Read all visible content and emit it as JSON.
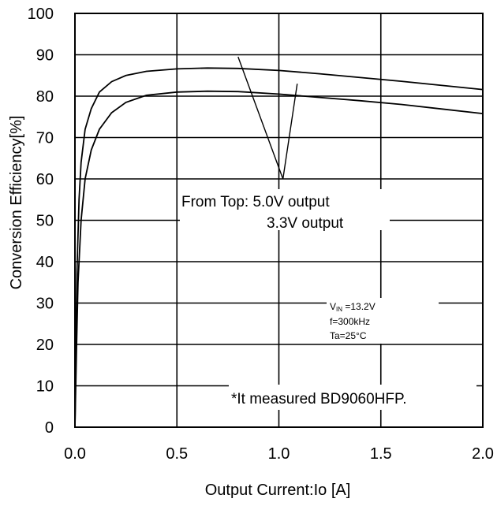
{
  "chart_data": {
    "type": "line",
    "title": "",
    "xlabel": "Output Current:Io [A]",
    "ylabel": "Conversion Efficiency[%]",
    "xlim": [
      0,
      2.0
    ],
    "ylim": [
      0,
      100
    ],
    "x_ticks": [
      "0.0",
      "0.5",
      "1.0",
      "1.5",
      "2.0"
    ],
    "y_ticks": [
      "0",
      "10",
      "20",
      "30",
      "40",
      "50",
      "60",
      "70",
      "80",
      "90",
      "100"
    ],
    "grid": true,
    "series": [
      {
        "points": [
          [
            0.0,
            0
          ],
          [
            0.005,
            20
          ],
          [
            0.01,
            38
          ],
          [
            0.02,
            55
          ],
          [
            0.03,
            64
          ],
          [
            0.05,
            72
          ],
          [
            0.08,
            77
          ],
          [
            0.12,
            81
          ],
          [
            0.18,
            83.5
          ],
          [
            0.25,
            85
          ],
          [
            0.35,
            86
          ],
          [
            0.5,
            86.6
          ],
          [
            0.65,
            86.8
          ],
          [
            0.8,
            86.7
          ],
          [
            1.0,
            86.2
          ],
          [
            1.2,
            85.4
          ],
          [
            1.4,
            84.5
          ],
          [
            1.6,
            83.6
          ],
          [
            1.8,
            82.6
          ],
          [
            2.0,
            81.6
          ]
        ]
      },
      {
        "points": [
          [
            0.0,
            0
          ],
          [
            0.008,
            20
          ],
          [
            0.015,
            35
          ],
          [
            0.03,
            50
          ],
          [
            0.05,
            60
          ],
          [
            0.08,
            67
          ],
          [
            0.12,
            72
          ],
          [
            0.18,
            76
          ],
          [
            0.25,
            78.5
          ],
          [
            0.35,
            80.2
          ],
          [
            0.5,
            81
          ],
          [
            0.65,
            81.2
          ],
          [
            0.8,
            81.1
          ],
          [
            1.0,
            80.5
          ],
          [
            1.2,
            79.7
          ],
          [
            1.4,
            78.9
          ],
          [
            1.6,
            78
          ],
          [
            1.8,
            76.9
          ],
          [
            2.0,
            75.8
          ]
        ]
      }
    ],
    "annotations": {
      "from_top_line1": "From Top: 5.0V output",
      "from_top_line2": "3.3V output",
      "vin_main": "V",
      "vin_sub": "IN",
      "vin_value": " =13.2V",
      "freq": "f=300kHz",
      "temp": "Ta=25°C",
      "note": "*It measured BD9060HFP."
    },
    "pointer_lines": [
      {
        "from": [
          0.8,
          89.5
        ],
        "to": [
          1.02,
          60
        ]
      },
      {
        "from": [
          1.02,
          60
        ],
        "to": [
          1.09,
          83
        ]
      }
    ]
  }
}
